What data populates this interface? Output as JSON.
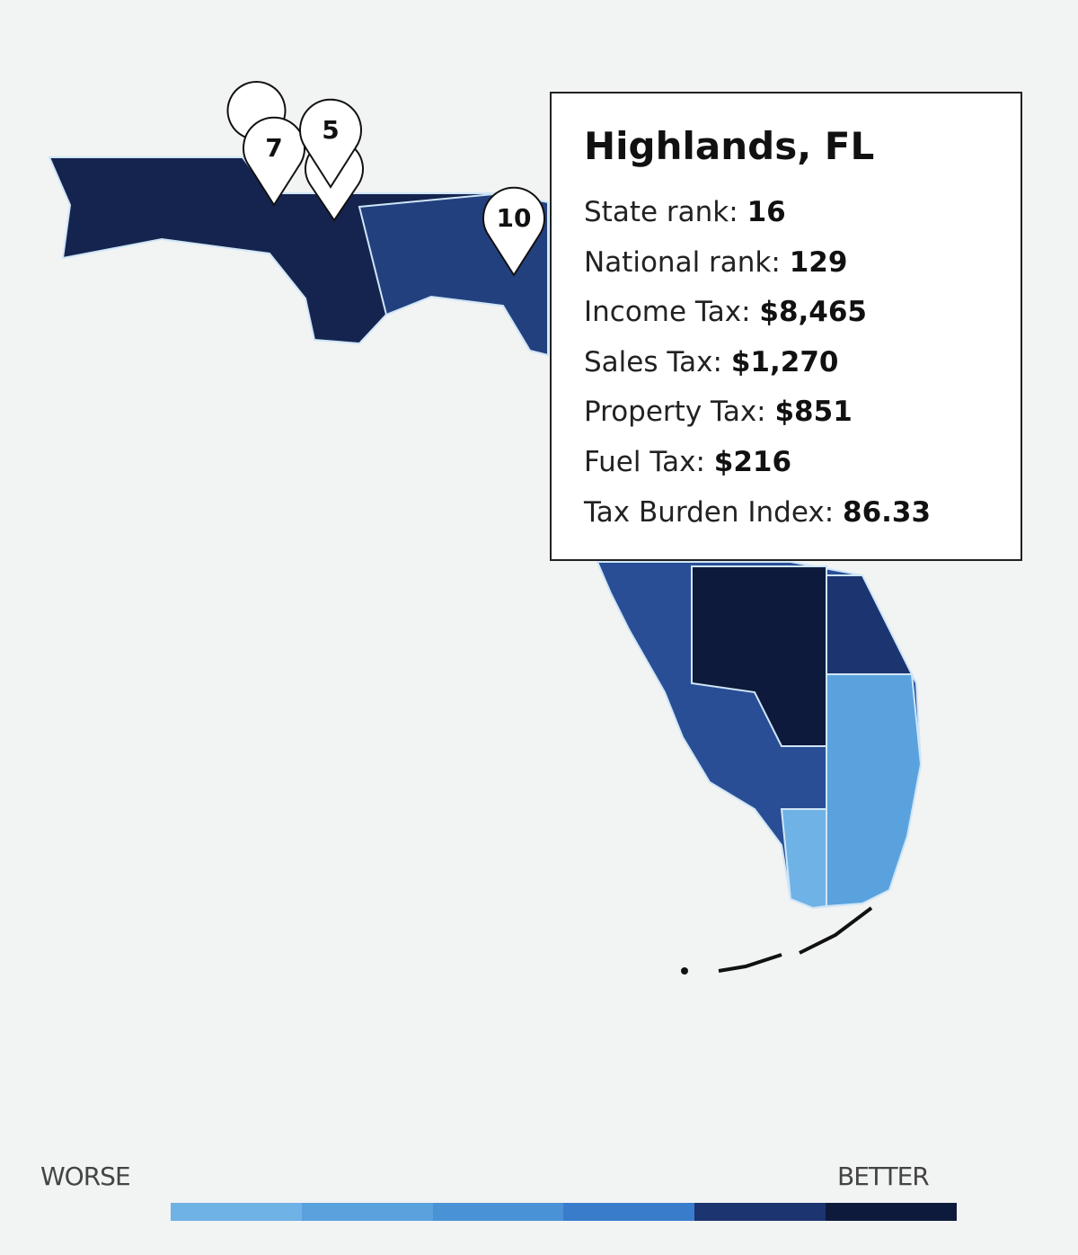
{
  "tooltip": {
    "title": "Highlands, FL",
    "rows": [
      {
        "label": "State rank:",
        "value": "16"
      },
      {
        "label": "National rank:",
        "value": "129"
      },
      {
        "label": "Income Tax:",
        "value": "$8,465"
      },
      {
        "label": "Sales Tax:",
        "value": "$1,270"
      },
      {
        "label": "Property Tax:",
        "value": "$851"
      },
      {
        "label": "Fuel Tax:",
        "value": "$216"
      },
      {
        "label": "Tax Burden Index:",
        "value": "86.33"
      }
    ]
  },
  "markers": [
    {
      "label": "7"
    },
    {
      "label": "5"
    },
    {
      "label": "10"
    }
  ],
  "legend": {
    "low_label": "WORSE",
    "high_label": "BETTER",
    "colors": [
      "#6fb2e6",
      "#5aa2de",
      "#4a92d6",
      "#3a7ccc",
      "#1c3470",
      "#0e1a3c"
    ]
  }
}
